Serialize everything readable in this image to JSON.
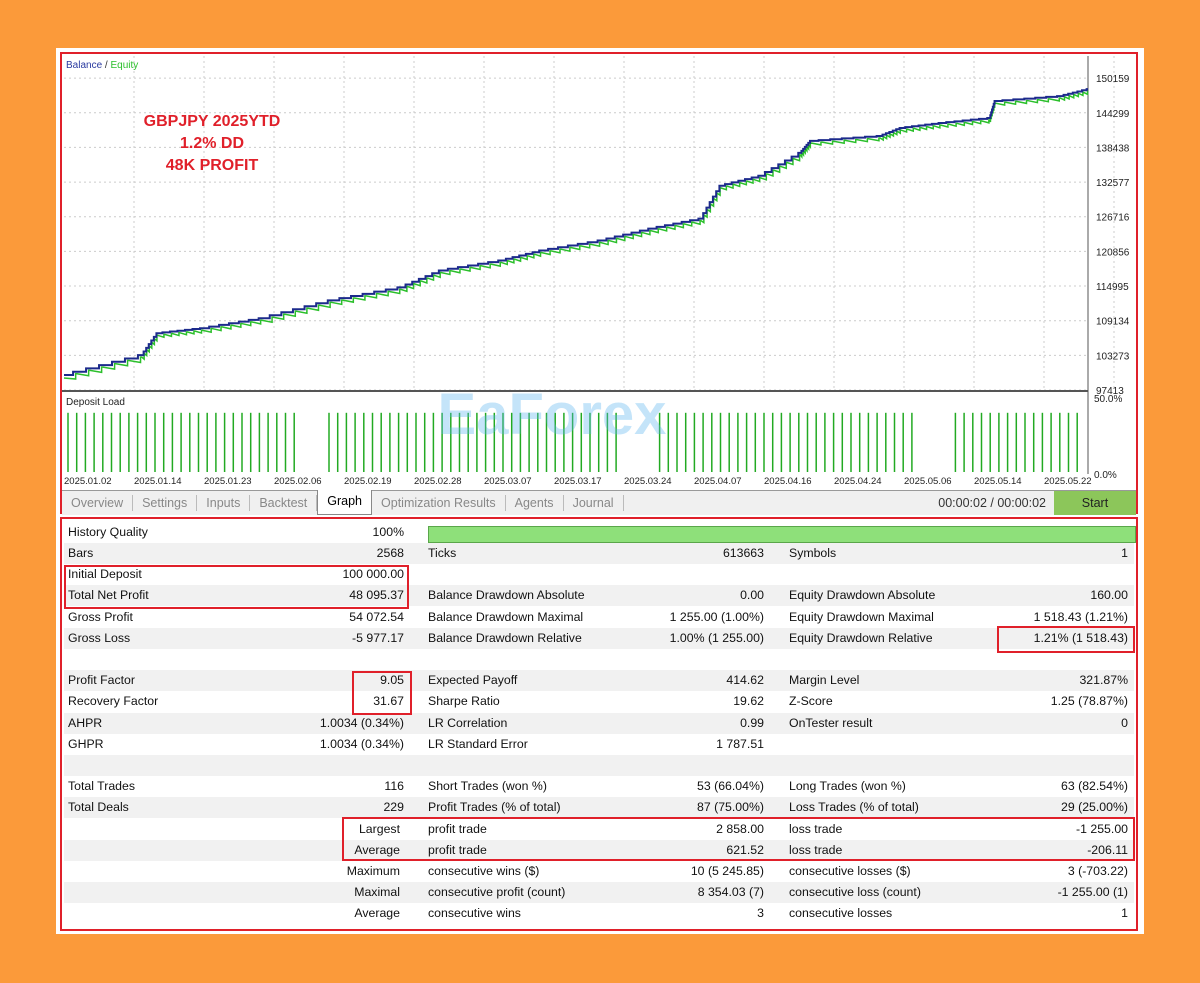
{
  "chart": {
    "legend_balance": "Balance",
    "legend_sep": " / ",
    "legend_equity": "Equity",
    "overlay_lines": [
      "GBPJPY 2025YTD",
      "1.2% DD",
      "48K PROFIT"
    ],
    "watermark": "EaForex",
    "deposit_load_label": "Deposit Load",
    "colors": {
      "balance": "#1c2a8c",
      "equity": "#2bbf2b",
      "overlay": "#e0202a",
      "deposit": "#22aa22"
    }
  },
  "chart_data": {
    "type": "line",
    "title": "Balance / Equity",
    "ylim": [
      97413,
      153900
    ],
    "y_ticks": [
      "150159",
      "144299",
      "138438",
      "132577",
      "126716",
      "120856",
      "114995",
      "109134",
      "103273",
      "97413"
    ],
    "y_tick_values": [
      150159,
      144299,
      138438,
      132577,
      126716,
      120856,
      114995,
      109134,
      103273,
      97413
    ],
    "x_ticks": [
      "2025.01.02",
      "2025.01.14",
      "2025.01.23",
      "2025.02.06",
      "2025.02.19",
      "2025.02.28",
      "2025.03.07",
      "2025.03.17",
      "2025.03.24",
      "2025.04.07",
      "2025.04.16",
      "2025.04.24",
      "2025.05.06",
      "2025.05.14",
      "2025.05.22"
    ],
    "x_unit": "fraction of test period",
    "series": [
      {
        "name": "Balance",
        "x": [
          0,
          0.076,
          0.091,
          0.135,
          0.193,
          0.261,
          0.329,
          0.368,
          0.427,
          0.466,
          0.524,
          0.573,
          0.622,
          0.641,
          0.68,
          0.719,
          0.729,
          0.797,
          0.817,
          0.856,
          0.904,
          0.909,
          0.973,
          1.0
        ],
        "values": [
          99940,
          103310,
          107020,
          107860,
          109550,
          112580,
          114770,
          117630,
          119320,
          121000,
          122690,
          124710,
          126400,
          131960,
          133640,
          137520,
          139540,
          140380,
          141730,
          142570,
          143410,
          146280,
          147120,
          148300
        ]
      }
    ],
    "deposit_load": {
      "y_ticks": [
        "50.0%",
        "0.0%"
      ],
      "typical_load_pct": 40
    }
  },
  "tabs": [
    "Overview",
    "Settings",
    "Inputs",
    "Backtest",
    "Graph",
    "Optimization Results",
    "Agents",
    "Journal"
  ],
  "active_tab": "Graph",
  "timer": "00:00:02 / 00:00:02",
  "start_label": "Start",
  "stats": {
    "history_quality": {
      "label": "History Quality",
      "value": "100%",
      "bar_pct": 100
    },
    "rows": [
      [
        "Bars",
        "2568",
        "Ticks",
        "613663",
        "Symbols",
        "1"
      ],
      [
        "Initial Deposit",
        "100 000.00",
        "",
        "",
        "",
        ""
      ],
      [
        "Total Net Profit",
        "48 095.37",
        "Balance Drawdown Absolute",
        "0.00",
        "Equity Drawdown Absolute",
        "160.00"
      ],
      [
        "Gross Profit",
        "54 072.54",
        "Balance Drawdown Maximal",
        "1 255.00 (1.00%)",
        "Equity Drawdown Maximal",
        "1 518.43 (1.21%)"
      ],
      [
        "Gross Loss",
        "-5 977.17",
        "Balance Drawdown Relative",
        "1.00% (1 255.00)",
        "Equity Drawdown Relative",
        "1.21% (1 518.43)"
      ],
      [
        "",
        "",
        "",
        "",
        "",
        ""
      ],
      [
        "Profit Factor",
        "9.05",
        "Expected Payoff",
        "414.62",
        "Margin Level",
        "321.87%"
      ],
      [
        "Recovery Factor",
        "31.67",
        "Sharpe Ratio",
        "19.62",
        "Z-Score",
        "1.25 (78.87%)"
      ],
      [
        "AHPR",
        "1.0034 (0.34%)",
        "LR Correlation",
        "0.99",
        "OnTester result",
        "0"
      ],
      [
        "GHPR",
        "1.0034 (0.34%)",
        "LR Standard Error",
        "1 787.51",
        "",
        ""
      ],
      [
        "",
        "",
        "",
        "",
        "",
        ""
      ],
      [
        "Total Trades",
        "116",
        "Short Trades (won %)",
        "53 (66.04%)",
        "Long Trades (won %)",
        "63 (82.54%)"
      ],
      [
        "Total Deals",
        "229",
        "Profit Trades (% of total)",
        "87 (75.00%)",
        "Loss Trades (% of total)",
        "29 (25.00%)"
      ],
      [
        "Largest",
        "",
        "profit trade",
        "2 858.00",
        "loss trade",
        "-1 255.00"
      ],
      [
        "Average",
        "",
        "profit trade",
        "621.52",
        "loss trade",
        "-206.11"
      ],
      [
        "Maximum",
        "",
        "consecutive wins ($)",
        "10 (5 245.85)",
        "consecutive losses ($)",
        "3 (-703.22)"
      ],
      [
        "Maximal",
        "",
        "consecutive profit (count)",
        "8 354.03 (7)",
        "consecutive loss (count)",
        "-1 255.00 (1)"
      ],
      [
        "Average",
        "",
        "consecutive wins",
        "3",
        "consecutive losses",
        "1"
      ]
    ]
  }
}
